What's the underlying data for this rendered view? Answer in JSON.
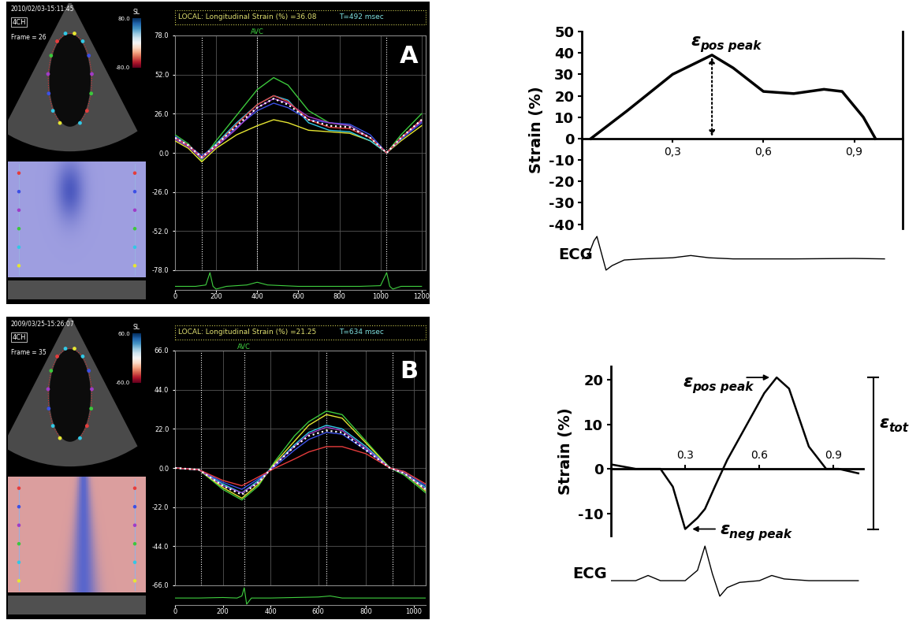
{
  "chart_data": [
    {
      "type": "line",
      "panel_label": "A",
      "title": "LOCAL: Longitudinal Strain (%) =36.08",
      "subtitle": "T=492 msec",
      "timestamp": "2010/02/03-15:11:45",
      "view": "4CH",
      "frame": "Frame = 26",
      "color_scale": {
        "title": "SL",
        "ticks": [
          {
            "value": 80,
            "label": "80.0"
          },
          {
            "value": -80,
            "label": "-80.0"
          }
        ]
      },
      "events": [
        {
          "x": 130
        },
        {
          "x": 400,
          "label": "AVC"
        },
        {
          "x": 1030
        }
      ],
      "x": [
        0,
        65,
        130,
        200,
        300,
        400,
        480,
        550,
        650,
        750,
        850,
        950,
        1030,
        1100,
        1200
      ],
      "series": [
        {
          "color": "#3cc83c",
          "line_style": "solid",
          "values": [
            12,
            6,
            -5,
            8,
            25,
            42,
            50,
            45,
            28,
            20,
            18,
            10,
            0,
            12,
            26
          ]
        },
        {
          "color": "#e6e632",
          "line_style": "solid",
          "values": [
            8,
            3,
            -6,
            3,
            12,
            18,
            22,
            20,
            15,
            14,
            13,
            8,
            0,
            8,
            18
          ]
        },
        {
          "color": "#32c8e6",
          "line_style": "solid",
          "values": [
            10,
            5,
            -3,
            6,
            20,
            32,
            38,
            35,
            20,
            15,
            14,
            8,
            0,
            10,
            22
          ]
        },
        {
          "color": "#3c50e6",
          "line_style": "solid",
          "values": [
            11,
            5,
            -2,
            5,
            17,
            28,
            33,
            30,
            22,
            20,
            19,
            12,
            0,
            9,
            20
          ]
        },
        {
          "color": "#a03cc8",
          "line_style": "solid",
          "values": [
            9,
            4,
            -4,
            4,
            16,
            30,
            36,
            33,
            24,
            20,
            18,
            10,
            0,
            10,
            21
          ]
        },
        {
          "color": "#e63c3c",
          "line_style": "solid",
          "values": [
            10,
            5,
            -3,
            5,
            19,
            32,
            38,
            34,
            22,
            17,
            16,
            10,
            0,
            10,
            22
          ]
        },
        {
          "color": "#ffffff",
          "line_style": "dotted",
          "values": [
            10,
            5,
            -3,
            5,
            18,
            30,
            36,
            32,
            22,
            18,
            17,
            10,
            0,
            10,
            22
          ]
        }
      ],
      "xlim": [
        0,
        1220
      ],
      "xticks": [
        0,
        200,
        400,
        600,
        800,
        1000,
        1200
      ],
      "ylim": [
        -78,
        78
      ],
      "yticks": [
        {
          "value": 78,
          "label": "78.0"
        },
        {
          "value": 52,
          "label": "52.0"
        },
        {
          "value": 26,
          "label": "26.0"
        },
        {
          "value": 0,
          "label": "0.0"
        },
        {
          "value": -26,
          "label": "-26.0"
        },
        {
          "value": -52,
          "label": "-52.0"
        },
        {
          "value": -78,
          "label": "-78.0"
        }
      ],
      "grid": true,
      "ecg": {
        "x": [
          0,
          100,
          150,
          170,
          185,
          200,
          250,
          350,
          400,
          450,
          600,
          900,
          1000,
          1030,
          1045,
          1060,
          1100,
          1200
        ],
        "values": [
          0,
          0,
          0.1,
          1,
          0,
          -0.2,
          0,
          0.1,
          0.3,
          0.1,
          0,
          0,
          0.05,
          1,
          0,
          -0.2,
          0,
          0
        ]
      }
    },
    {
      "type": "line",
      "panel_label": "B",
      "title": "LOCAL: Longitudinal Strain (%) =21.25",
      "subtitle": "T=634 msec",
      "timestamp": "2009/03/25-15:26:07",
      "view": "4CH",
      "frame": "Frame = 35",
      "color_scale": {
        "title": "SL",
        "ticks": [
          {
            "value": 60,
            "label": "60.0"
          },
          {
            "value": -60,
            "label": "-60.0"
          }
        ]
      },
      "events": [
        {
          "x": 110
        },
        {
          "x": 290,
          "label": "AVC"
        },
        {
          "x": 634
        },
        {
          "x": 910
        }
      ],
      "x": [
        0,
        100,
        200,
        280,
        350,
        420,
        500,
        560,
        634,
        700,
        800,
        900,
        960,
        1050
      ],
      "series": [
        {
          "color": "#3cc83c",
          "line_style": "solid",
          "values": [
            0,
            -1,
            -12,
            -18,
            -10,
            4,
            18,
            26,
            32,
            30,
            15,
            0,
            -4,
            -14
          ]
        },
        {
          "color": "#e6e632",
          "line_style": "solid",
          "values": [
            0,
            -1,
            -11,
            -17,
            -9,
            3,
            15,
            24,
            30,
            28,
            14,
            0,
            -3,
            -13
          ]
        },
        {
          "color": "#32c8e6",
          "line_style": "solid",
          "values": [
            0,
            -1,
            -9,
            -14,
            -7,
            2,
            13,
            20,
            24,
            22,
            12,
            0,
            -3,
            -11
          ]
        },
        {
          "color": "#3c50e6",
          "line_style": "solid",
          "values": [
            0,
            -1,
            -8,
            -12,
            -6,
            1,
            10,
            16,
            20,
            19,
            10,
            0,
            -2,
            -10
          ]
        },
        {
          "color": "#a03cc8",
          "line_style": "solid",
          "values": [
            0,
            -1,
            -10,
            -14,
            -8,
            2,
            12,
            19,
            23,
            21,
            11,
            0,
            -3,
            -12
          ]
        },
        {
          "color": "#e63c3c",
          "line_style": "solid",
          "values": [
            0,
            -1,
            -7,
            -10,
            -5,
            0,
            5,
            9,
            12,
            12,
            8,
            0,
            -2,
            -9
          ]
        },
        {
          "color": "#ffffff",
          "line_style": "dotted",
          "values": [
            0,
            -1,
            -10,
            -15,
            -8,
            2,
            12,
            18,
            21,
            20,
            10,
            0,
            -3,
            -12
          ]
        }
      ],
      "xlim": [
        0,
        1050
      ],
      "xticks": [
        0,
        200,
        400,
        600,
        800,
        1000
      ],
      "ylim": [
        -66,
        66
      ],
      "yticks": [
        {
          "value": 66,
          "label": "66.0"
        },
        {
          "value": 44,
          "label": "44.0"
        },
        {
          "value": 22,
          "label": "22.0"
        },
        {
          "value": 0,
          "label": "0.0"
        },
        {
          "value": -22,
          "label": "-22.0"
        },
        {
          "value": -44,
          "label": "-44.0"
        },
        {
          "value": -66,
          "label": "-66.0"
        }
      ],
      "grid": true,
      "ecg": {
        "x": [
          0,
          100,
          200,
          260,
          280,
          290,
          300,
          320,
          400,
          600,
          650,
          700,
          900,
          1050
        ],
        "values": [
          0,
          0,
          0.05,
          0,
          0.2,
          1,
          -0.6,
          0,
          0,
          0.1,
          0.2,
          0,
          0,
          0
        ]
      }
    },
    {
      "type": "line",
      "ylabel": "Strain (%)",
      "color": "#000000",
      "x": [
        0.03,
        0.15,
        0.3,
        0.43,
        0.5,
        0.6,
        0.7,
        0.8,
        0.86,
        0.93,
        0.97
      ],
      "values": [
        0,
        13,
        30,
        39,
        33,
        22,
        21,
        23,
        22,
        10,
        0
      ],
      "xlim": [
        0,
        1.06
      ],
      "xticks": [
        {
          "value": 0.3,
          "label": "0,3"
        },
        {
          "value": 0.6,
          "label": "0,6"
        },
        {
          "value": 0.9,
          "label": "0,9"
        }
      ],
      "ylim": [
        -42,
        50
      ],
      "yticks": [
        -40,
        -30,
        -20,
        -10,
        0,
        10,
        20,
        30,
        40,
        50
      ],
      "annotations": {
        "pos_peak": {
          "symbol": "ε",
          "subscript": "pos peak"
        }
      },
      "ecg": {
        "label": "ECG",
        "x": [
          0,
          0.02,
          0.04,
          0.05,
          0.06,
          0.08,
          0.1,
          0.14,
          0.2,
          0.3,
          0.36,
          0.42,
          0.5,
          0.7,
          0.9,
          1.0
        ],
        "values": [
          0,
          0.1,
          0.8,
          1.0,
          0.5,
          -0.5,
          -0.3,
          -0.05,
          0,
          0.05,
          0.15,
          0.05,
          0,
          0,
          0.02,
          0
        ]
      }
    },
    {
      "type": "line",
      "ylabel": "Strain (%)",
      "color": "#000000",
      "x": [
        0,
        0.1,
        0.2,
        0.25,
        0.3,
        0.35,
        0.38,
        0.42,
        0.47,
        0.55,
        0.62,
        0.67,
        0.72,
        0.8,
        0.87,
        0.92,
        1.0
      ],
      "values": [
        1,
        0,
        0,
        -4,
        -13.5,
        -11,
        -9,
        -4,
        2,
        10,
        17,
        20.5,
        18,
        5,
        0,
        0,
        -1
      ],
      "xlim": [
        0,
        1.02
      ],
      "xticks": [
        0.3,
        0.6,
        0.9
      ],
      "ylim": [
        -15,
        23
      ],
      "yticks": [
        -10,
        0,
        10,
        20
      ],
      "annotations": {
        "pos_peak": {
          "symbol": "ε",
          "subscript": "pos peak"
        },
        "neg_peak": {
          "symbol": "ε",
          "subscript": "neg peak"
        },
        "tot": {
          "symbol": "ε",
          "subscript": "tot"
        }
      },
      "ecg": {
        "label": "ECG",
        "x": [
          0,
          0.1,
          0.15,
          0.2,
          0.3,
          0.35,
          0.38,
          0.41,
          0.44,
          0.47,
          0.52,
          0.6,
          0.65,
          0.7,
          0.8,
          1.0
        ],
        "values": [
          0,
          0,
          0.15,
          0,
          0,
          0.3,
          1.0,
          0.2,
          -0.45,
          -0.2,
          -0.05,
          0,
          0.15,
          0.05,
          0,
          0
        ]
      }
    }
  ]
}
